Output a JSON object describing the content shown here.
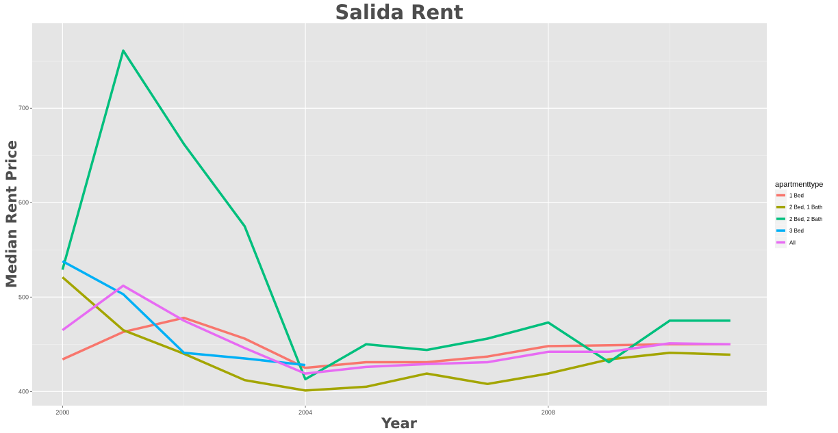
{
  "chart_data": {
    "type": "line",
    "title": "Salida Rent",
    "xlabel": "Year",
    "ylabel": "Median Rent Price",
    "xlim": [
      1999.5,
      2011.6
    ],
    "ylim": [
      385,
      790
    ],
    "x_ticks": [
      2000,
      2004,
      2008
    ],
    "x_minor_ticks": [
      2002,
      2006,
      2010
    ],
    "y_ticks": [
      400,
      500,
      600,
      700
    ],
    "y_minor_ticks": [
      450,
      550,
      650,
      750
    ],
    "grid": true,
    "legend_title": "apartmenttype",
    "legend_position": "right",
    "series": [
      {
        "name": "1 Bed",
        "color": "#F8766D",
        "x": [
          2000,
          2001,
          2002,
          2003,
          2004,
          2005,
          2006,
          2007,
          2008,
          2009,
          2010,
          2011
        ],
        "values": [
          434,
          463,
          478,
          456,
          425,
          431,
          431,
          437,
          448,
          449,
          450,
          450
        ]
      },
      {
        "name": "2 Bed, 1 Bath",
        "color": "#A3A500",
        "x": [
          2000,
          2001,
          2002,
          2003,
          2004,
          2005,
          2006,
          2007,
          2008,
          2009,
          2010,
          2011
        ],
        "values": [
          521,
          465,
          440,
          412,
          401,
          405,
          419,
          408,
          419,
          434,
          441,
          439
        ]
      },
      {
        "name": "2 Bed, 2 Bath",
        "color": "#00BF7D",
        "x": [
          2000,
          2001,
          2002,
          2003,
          2004,
          2005,
          2006,
          2007,
          2008,
          2009,
          2010,
          2011
        ],
        "values": [
          529,
          761,
          662,
          575,
          413,
          450,
          444,
          456,
          473,
          431,
          475,
          475
        ]
      },
      {
        "name": "3 Bed",
        "color": "#00B0F6",
        "x": [
          2000,
          2001,
          2002,
          2003,
          2004
        ],
        "values": [
          538,
          503,
          441,
          435,
          428
        ]
      },
      {
        "name": "All",
        "color": "#E76BF3",
        "x": [
          2000,
          2001,
          2002,
          2003,
          2004,
          2005,
          2006,
          2007,
          2008,
          2009,
          2010,
          2011
        ],
        "values": [
          465,
          512,
          475,
          446,
          419,
          426,
          429,
          431,
          442,
          442,
          451,
          450
        ]
      }
    ]
  }
}
